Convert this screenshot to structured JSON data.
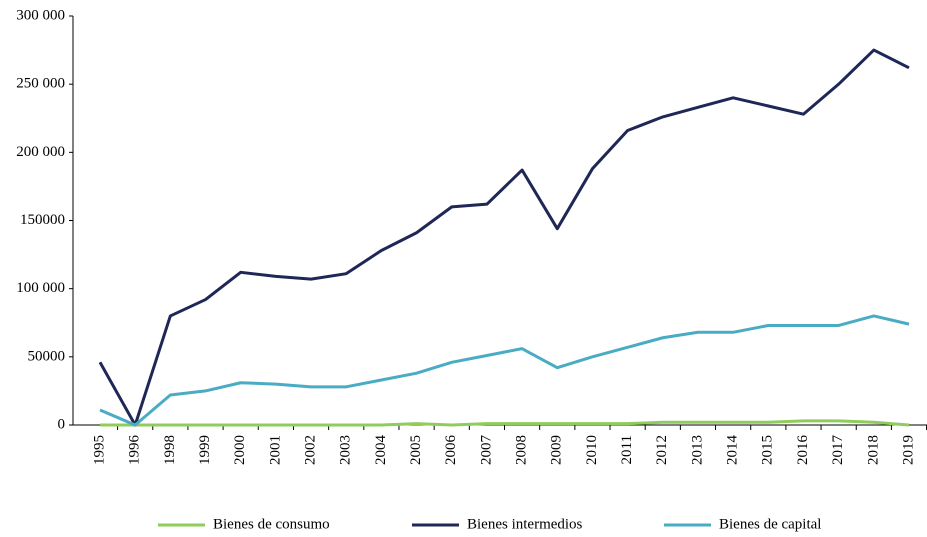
{
  "chart_data": {
    "type": "line",
    "categories": [
      "1995",
      "1996",
      "1998",
      "1999",
      "2000",
      "2001",
      "2002",
      "2003",
      "2004",
      "2005",
      "2006",
      "2007",
      "2008",
      "2009",
      "2010",
      "2011",
      "2012",
      "2013",
      "2014",
      "2015",
      "2016",
      "2017",
      "2018",
      "2019"
    ],
    "series": [
      {
        "name": "Bienes de consumo",
        "color": "#8fcc5c",
        "values": [
          0,
          0,
          0,
          0,
          0,
          0,
          0,
          0,
          0,
          1000,
          0,
          1000,
          1000,
          1000,
          1000,
          1000,
          2000,
          2000,
          2000,
          2000,
          3000,
          3000,
          2000,
          0
        ]
      },
      {
        "name": "Bienes intermedios",
        "color": "#1f2757",
        "values": [
          46000,
          0,
          80000,
          92000,
          112000,
          109000,
          107000,
          111000,
          128000,
          141000,
          160000,
          162000,
          187000,
          144000,
          188000,
          216000,
          226000,
          233000,
          240000,
          234000,
          228000,
          250000,
          275000,
          262000
        ]
      },
      {
        "name": "Bienes de capital",
        "color": "#4aabc4",
        "values": [
          11000,
          0,
          22000,
          25000,
          31000,
          30000,
          28000,
          28000,
          33000,
          38000,
          46000,
          51000,
          56000,
          42000,
          50000,
          57000,
          64000,
          68000,
          68000,
          73000,
          73000,
          73000,
          80000,
          74000
        ]
      }
    ],
    "ylim": [
      0,
      300000
    ],
    "yticks": [
      0,
      {
        "value": 50000,
        "label": "50000"
      },
      {
        "value": 100000,
        "label": "100 000"
      },
      {
        "value": 150000,
        "label": "150000"
      },
      {
        "value": 200000,
        "label": "200 000"
      },
      {
        "value": 250000,
        "label": "250 000"
      },
      {
        "value": 300000,
        "label": "300 000"
      }
    ],
    "legend": "bottom"
  }
}
